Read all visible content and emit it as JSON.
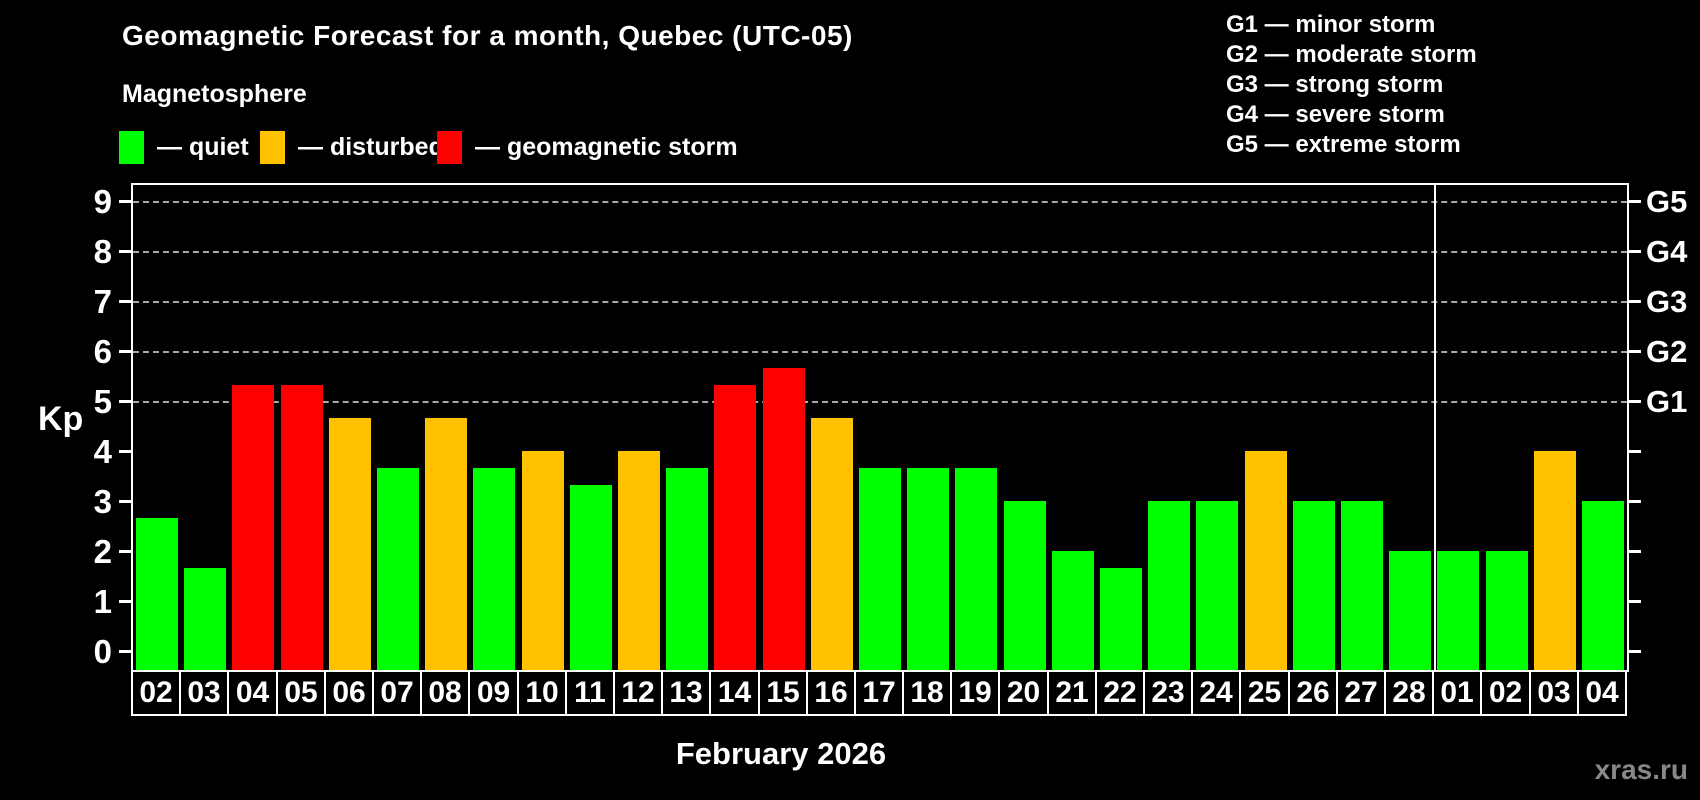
{
  "title": "Geomagnetic Forecast for a month, Quebec (UTC-05)",
  "subtitle": "Magnetosphere",
  "legend": [
    {
      "key": "quiet",
      "label": "— quiet",
      "color": "#00FF00"
    },
    {
      "key": "disturbed",
      "label": "— disturbed",
      "color": "#FFC100"
    },
    {
      "key": "storm",
      "label": "— geomagnetic storm",
      "color": "#FF0000"
    }
  ],
  "storm_scale": [
    "G1 — minor storm",
    "G2 — moderate storm",
    "G3 — strong storm",
    "G4 — severe storm",
    "G5 — extreme storm"
  ],
  "axis": {
    "kp_label": "Kp",
    "left_tick_labels": [
      "0",
      "1",
      "2",
      "3",
      "4",
      "5",
      "6",
      "7",
      "8",
      "9"
    ],
    "right_axis_labels": [
      {
        "kp": 5,
        "label": "G1"
      },
      {
        "kp": 6,
        "label": "G2"
      },
      {
        "kp": 7,
        "label": "G3"
      },
      {
        "kp": 8,
        "label": "G4"
      },
      {
        "kp": 9,
        "label": "G5"
      }
    ]
  },
  "chart_data": {
    "type": "bar",
    "title": "Geomagnetic Forecast for a month, Quebec (UTC-05)",
    "ylabel": "Kp",
    "xlabel": "February 2026",
    "ylim": [
      0,
      9.4
    ],
    "yticks": [
      0,
      1,
      2,
      3,
      4,
      5,
      6,
      7,
      8,
      9
    ],
    "gridlines_at_kp": [
      5,
      6,
      7,
      8,
      9
    ],
    "legend_position": "top",
    "month_divider_before_index": 27,
    "categories": [
      "02",
      "03",
      "04",
      "05",
      "06",
      "07",
      "08",
      "09",
      "10",
      "11",
      "12",
      "13",
      "14",
      "15",
      "16",
      "17",
      "18",
      "19",
      "20",
      "21",
      "22",
      "23",
      "24",
      "25",
      "26",
      "27",
      "28",
      "01",
      "02",
      "03",
      "04"
    ],
    "values": [
      2.67,
      1.67,
      5.33,
      5.33,
      4.67,
      3.67,
      4.67,
      3.67,
      4.0,
      3.33,
      4.0,
      3.67,
      5.33,
      5.67,
      4.67,
      3.67,
      3.67,
      3.67,
      3.0,
      2.0,
      1.67,
      3.0,
      3.0,
      4.0,
      3.0,
      3.0,
      2.0,
      2.0,
      2.0,
      4.0,
      3.0
    ],
    "status": [
      "quiet",
      "quiet",
      "storm",
      "storm",
      "disturbed",
      "quiet",
      "disturbed",
      "quiet",
      "disturbed",
      "quiet",
      "disturbed",
      "quiet",
      "storm",
      "storm",
      "disturbed",
      "quiet",
      "quiet",
      "quiet",
      "quiet",
      "quiet",
      "quiet",
      "quiet",
      "quiet",
      "disturbed",
      "quiet",
      "quiet",
      "quiet",
      "quiet",
      "quiet",
      "disturbed",
      "quiet"
    ]
  },
  "colors": {
    "quiet": "#00FF00",
    "disturbed": "#FFC100",
    "storm": "#FF0000"
  },
  "xaxis_title": "February 2026",
  "watermark": "xras.ru"
}
